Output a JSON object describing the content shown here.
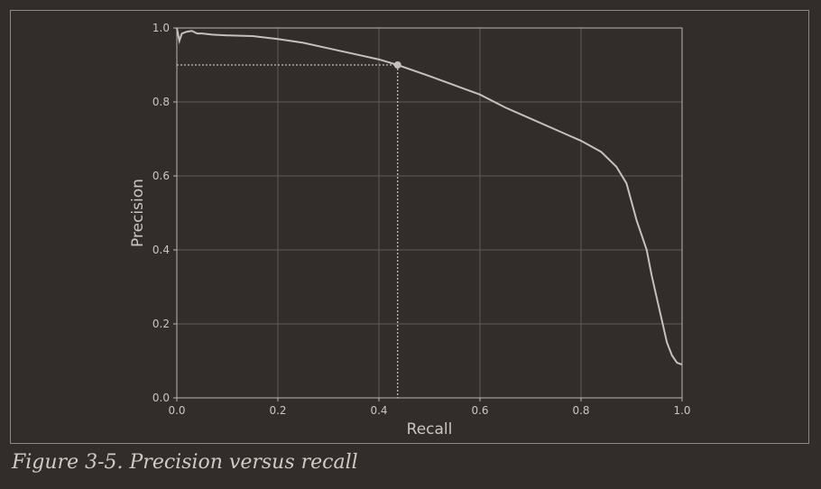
{
  "figure": {
    "caption": "Figure 3-5. Precision versus recall"
  },
  "colors": {
    "background": "#322d2a",
    "frame": "#8c8782",
    "axes": "#bdb8b2",
    "grid": "#5f5a55",
    "curve": "#c4c0bb",
    "text": "#c9c5c0"
  },
  "chart_data": {
    "type": "line",
    "title": "",
    "xlabel": "Recall",
    "ylabel": "Precision",
    "xlim": [
      0.0,
      1.0
    ],
    "ylim": [
      0.0,
      1.0
    ],
    "xticks": [
      "0.0",
      "0.2",
      "0.4",
      "0.6",
      "0.8",
      "1.0"
    ],
    "yticks": [
      "0.0",
      "0.2",
      "0.4",
      "0.6",
      "0.8",
      "1.0"
    ],
    "grid": true,
    "legend": "none",
    "series": [
      {
        "x": [
          0.0,
          0.005,
          0.01,
          0.02,
          0.03,
          0.04,
          0.05,
          0.07,
          0.1,
          0.15,
          0.2,
          0.25,
          0.3,
          0.35,
          0.4,
          0.437,
          0.5,
          0.55,
          0.6,
          0.65,
          0.7,
          0.75,
          0.8,
          0.84,
          0.87,
          0.89,
          0.91,
          0.93,
          0.94,
          0.95,
          0.96,
          0.97,
          0.98,
          0.99,
          1.0
        ],
        "y": [
          1.0,
          0.965,
          0.985,
          0.99,
          0.992,
          0.985,
          0.985,
          0.982,
          0.98,
          0.978,
          0.97,
          0.96,
          0.945,
          0.93,
          0.915,
          0.9,
          0.87,
          0.845,
          0.82,
          0.785,
          0.755,
          0.725,
          0.695,
          0.665,
          0.625,
          0.58,
          0.48,
          0.4,
          0.33,
          0.27,
          0.21,
          0.15,
          0.115,
          0.095,
          0.09
        ]
      }
    ],
    "annotations": [
      {
        "type": "threshold_marker",
        "x": 0.437,
        "y": 0.9
      }
    ]
  }
}
